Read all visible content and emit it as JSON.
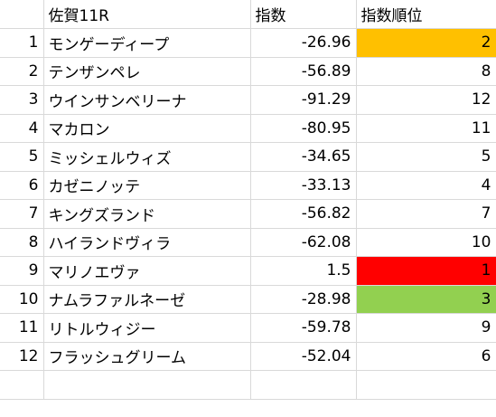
{
  "header": {
    "index": "",
    "name": "佐賀11R",
    "score": "指数",
    "rank": "指数順位"
  },
  "rows": [
    {
      "index": "1",
      "name": "モンゲーディープ",
      "score": "-26.96",
      "rank": "2",
      "highlight": "#ffc000"
    },
    {
      "index": "2",
      "name": "テンザンペレ",
      "score": "-56.89",
      "rank": "8",
      "highlight": ""
    },
    {
      "index": "3",
      "name": "ウインサンベリーナ",
      "score": "-91.29",
      "rank": "12",
      "highlight": ""
    },
    {
      "index": "4",
      "name": "マカロン",
      "score": "-80.95",
      "rank": "11",
      "highlight": ""
    },
    {
      "index": "5",
      "name": "ミッシェルウィズ",
      "score": "-34.65",
      "rank": "5",
      "highlight": ""
    },
    {
      "index": "6",
      "name": "カゼニノッテ",
      "score": "-33.13",
      "rank": "4",
      "highlight": ""
    },
    {
      "index": "7",
      "name": "キングズランド",
      "score": "-56.82",
      "rank": "7",
      "highlight": ""
    },
    {
      "index": "8",
      "name": "ハイランドヴィラ",
      "score": "-62.08",
      "rank": "10",
      "highlight": ""
    },
    {
      "index": "9",
      "name": "マリノエヴァ",
      "score": "1.5",
      "rank": "1",
      "highlight": "#ff0000"
    },
    {
      "index": "10",
      "name": "ナムラファルネーゼ",
      "score": "-28.98",
      "rank": "3",
      "highlight": "#92d050"
    },
    {
      "index": "11",
      "name": "リトルウィジー",
      "score": "-59.78",
      "rank": "9",
      "highlight": ""
    },
    {
      "index": "12",
      "name": "フラッシュグリーム",
      "score": "-52.04",
      "rank": "6",
      "highlight": ""
    }
  ]
}
